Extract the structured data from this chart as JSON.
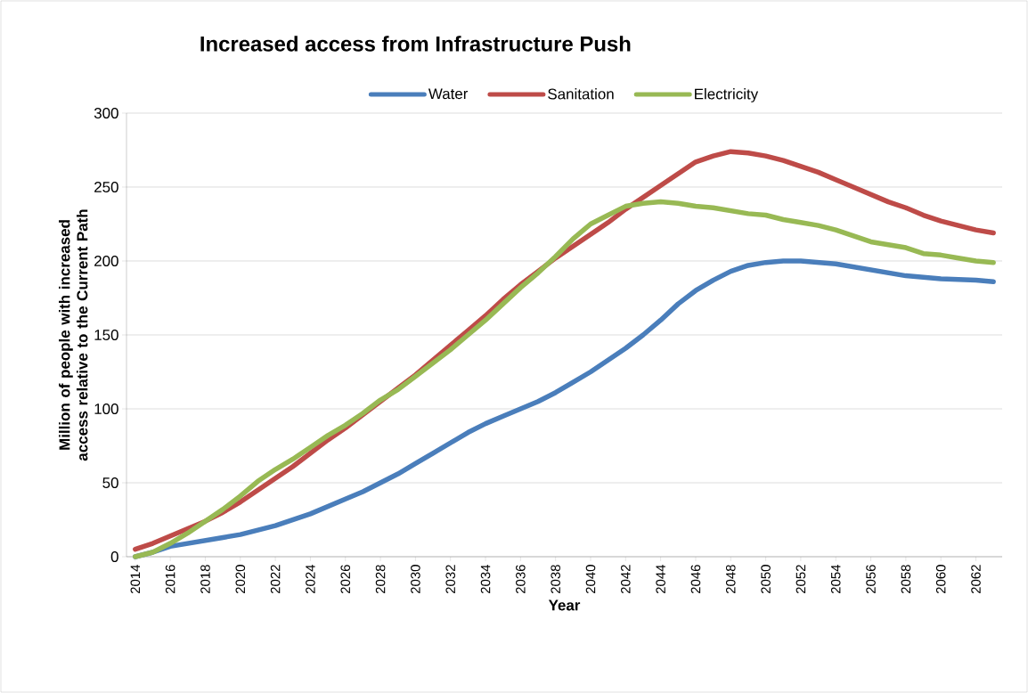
{
  "chart_data": {
    "type": "line",
    "title": "Increased access from Infrastructure Push",
    "xlabel": "Year",
    "ylabel": "Million of people with increased access relative to the Current Path",
    "x": [
      2014,
      2015,
      2016,
      2017,
      2018,
      2019,
      2020,
      2021,
      2022,
      2023,
      2024,
      2025,
      2026,
      2027,
      2028,
      2029,
      2030,
      2031,
      2032,
      2033,
      2034,
      2035,
      2036,
      2037,
      2038,
      2039,
      2040,
      2041,
      2042,
      2043,
      2044,
      2045,
      2046,
      2047,
      2048,
      2049,
      2050,
      2051,
      2052,
      2053,
      2054,
      2055,
      2056,
      2057,
      2058,
      2059,
      2060,
      2061,
      2062,
      2063
    ],
    "series": [
      {
        "name": "Water",
        "color": "#4a7ebb",
        "values": [
          0,
          3,
          7,
          9,
          11,
          13,
          15,
          18,
          21,
          25,
          29,
          34,
          39,
          44,
          50,
          56,
          63,
          70,
          77,
          84,
          90,
          95,
          100,
          105,
          111,
          118,
          125,
          133,
          141,
          150,
          160,
          171,
          180,
          187,
          193,
          197,
          199,
          200,
          200,
          199,
          198,
          196,
          194,
          192,
          190,
          189,
          188,
          187.5,
          187,
          186
        ]
      },
      {
        "name": "Sanitation",
        "color": "#be4b48",
        "values": [
          5,
          9,
          14,
          19,
          24,
          30,
          37,
          45,
          53,
          61,
          70,
          79,
          87,
          96,
          105,
          114,
          123,
          133,
          143,
          153,
          163,
          174,
          184,
          193,
          202,
          210,
          218,
          226,
          235,
          243,
          251,
          259,
          267,
          271,
          274,
          273,
          271,
          268,
          264,
          260,
          255,
          250,
          245,
          240,
          236,
          231,
          227,
          224,
          221,
          219
        ]
      },
      {
        "name": "Electricity",
        "color": "#98b954",
        "values": [
          0,
          3,
          9,
          16,
          24,
          32,
          41,
          51,
          59,
          66,
          74,
          82,
          89,
          97,
          106,
          113,
          122,
          131,
          140,
          150,
          160,
          171,
          182,
          192,
          203,
          215,
          225,
          231,
          237,
          239,
          240,
          239,
          237,
          236,
          234,
          232,
          231,
          228,
          226,
          224,
          221,
          217,
          213,
          211,
          209,
          205,
          204,
          202,
          200,
          199
        ]
      }
    ],
    "xlim": [
      2013.5,
      2063.5
    ],
    "xticks": [
      2014,
      2016,
      2018,
      2020,
      2022,
      2024,
      2026,
      2028,
      2030,
      2032,
      2034,
      2036,
      2038,
      2040,
      2042,
      2044,
      2046,
      2048,
      2050,
      2052,
      2054,
      2056,
      2058,
      2060,
      2062
    ],
    "ylim": [
      0,
      300
    ],
    "yticks": [
      0,
      50,
      100,
      150,
      200,
      250,
      300
    ],
    "grid": "y",
    "legend": "top",
    "marker": "none",
    "line_style": "solid"
  }
}
